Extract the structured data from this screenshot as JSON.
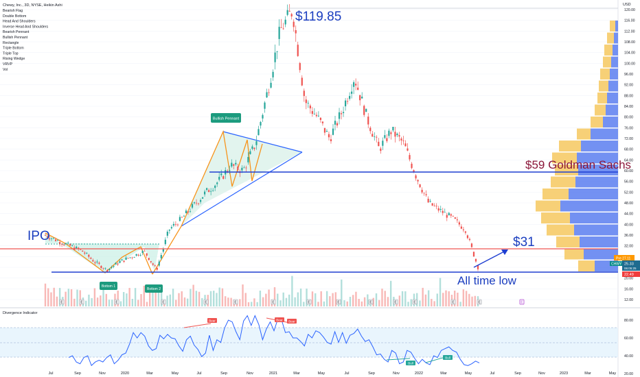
{
  "header": {
    "symbol_line": "Chewy, Inc., 3D, NYSE, Heikin Ashi",
    "studies": [
      "Bearish Flag",
      "Double Bottom",
      "Head And Shoulders",
      "Inverse Head And Shoulders",
      "Bearish Pennant",
      "Bullish Pennant",
      "Rectangle",
      "Triple Bottom",
      "Triple Top",
      "Rising Wedge",
      "VRVP",
      "Vol"
    ],
    "currency": "USD"
  },
  "annotations": {
    "ipo": "IPO",
    "ath": "$119.85",
    "goldman": "$59 Goldman Sachs",
    "target": "$31",
    "atl": "All time low",
    "bullish_pennant": "Bullish Pennant",
    "bottom1": "Bottom 1",
    "bottom2": "Bottom 2",
    "earnings_marker": "E"
  },
  "price_tags": {
    "tag1": "Pre 27.11",
    "chwy": "CHWY",
    "last_price": "25.33",
    "countdown": "06:05:25",
    "low_tag": "22.49"
  },
  "indicator": {
    "title": "Divergence Indicator",
    "bear_label": "Bear",
    "bull_label": "Bull",
    "upper_band": 70,
    "lower_band": 30,
    "mid_line": 50
  },
  "chart_data": [
    {
      "type": "candlestick",
      "title": "Chewy, Inc., 3D, NYSE, Heikin Ashi",
      "y_axis_ticks": [
        12.0,
        16.0,
        20.0,
        24.0,
        28.0,
        32.0,
        36.0,
        40.0,
        44.0,
        48.0,
        52.0,
        56.0,
        60.0,
        64.0,
        68.0,
        72.0,
        76.0,
        80.0,
        84.0,
        88.0,
        92.0,
        96.0,
        100.0,
        104.0,
        108.0,
        112.0,
        116.0,
        120.0
      ],
      "x_axis_ticks": [
        "Jul",
        "Sep",
        "Nov",
        "2020",
        "Mar",
        "May",
        "Jul",
        "Sep",
        "Nov",
        "2021",
        "Mar",
        "May",
        "Jul",
        "Sep",
        "Nov",
        "2022",
        "Mar",
        "May",
        "Jul",
        "Sep",
        "Nov",
        "2023",
        "Mar",
        "May"
      ],
      "ylim": [
        10,
        123
      ],
      "levels": {
        "all_time_high": 119.85,
        "goldman_target": 59,
        "red_line": 31,
        "all_time_low": 22.49,
        "last": 25.33
      },
      "series": [
        {
          "name": "Price (approx.)",
          "points": [
            [
              "Jun 2019",
              36
            ],
            [
              "Jul 2019",
              34
            ],
            [
              "Aug 2019",
              32
            ],
            [
              "Sep 2019",
              30
            ],
            [
              "Oct 2019",
              26
            ],
            [
              "Nov 2019",
              23
            ],
            [
              "Dec 2019",
              26
            ],
            [
              "Jan 2020",
              28
            ],
            [
              "Feb 2020",
              30
            ],
            [
              "Mar 2020",
              23
            ],
            [
              "Apr 2020",
              38
            ],
            [
              "May 2020",
              42
            ],
            [
              "Jun 2020",
              47
            ],
            [
              "Jul 2020",
              52
            ],
            [
              "Aug 2020",
              56
            ],
            [
              "Sep 2020",
              62
            ],
            [
              "Oct 2020",
              60
            ],
            [
              "Nov 2020",
              70
            ],
            [
              "Dec 2020",
              90
            ],
            [
              "Jan 2021",
              112
            ],
            [
              "Feb 2021",
              119.85
            ],
            [
              "Mar 2021",
              86
            ],
            [
              "Apr 2021",
              80
            ],
            [
              "May 2021",
              72
            ],
            [
              "Jun 2021",
              82
            ],
            [
              "Jul 2021",
              95
            ],
            [
              "Aug 2021",
              80
            ],
            [
              "Sep 2021",
              68
            ],
            [
              "Oct 2021",
              75
            ],
            [
              "Nov 2021",
              70
            ],
            [
              "Dec 2021",
              58
            ],
            [
              "Jan 2022",
              48
            ],
            [
              "Feb 2022",
              45
            ],
            [
              "Mar 2022",
              42
            ],
            [
              "Apr 2022",
              38
            ],
            [
              "May 2022",
              24
            ]
          ]
        }
      ]
    },
    {
      "type": "line",
      "title": "Divergence Indicator",
      "y_axis_ticks": [
        20.0,
        40.0,
        60.0,
        80.0
      ],
      "ylim": [
        15,
        90
      ],
      "series": [
        {
          "name": "Oscillator",
          "values": [
            38,
            40,
            33,
            31,
            38,
            40,
            29,
            33,
            35,
            33,
            38,
            41,
            31,
            35,
            41,
            43,
            53,
            66,
            60,
            66,
            62,
            51,
            46,
            48,
            63,
            59,
            64,
            60,
            59,
            51,
            45,
            58,
            62,
            52,
            47,
            39,
            43,
            63,
            46,
            58,
            55,
            71,
            80,
            78,
            67,
            58,
            79,
            85,
            74,
            85,
            75,
            58,
            70,
            78,
            68,
            81,
            80,
            66,
            67,
            60,
            60,
            56,
            51,
            64,
            60,
            68,
            66,
            61,
            55,
            53,
            67,
            55,
            66,
            54,
            63,
            65,
            70,
            62,
            56,
            58,
            50,
            41,
            42,
            36,
            33,
            46,
            43,
            31,
            33,
            46,
            44,
            37,
            31,
            36,
            32,
            30,
            40,
            38,
            46,
            48,
            50,
            46,
            44,
            36,
            30,
            29,
            31,
            34,
            32
          ]
        }
      ]
    }
  ]
}
